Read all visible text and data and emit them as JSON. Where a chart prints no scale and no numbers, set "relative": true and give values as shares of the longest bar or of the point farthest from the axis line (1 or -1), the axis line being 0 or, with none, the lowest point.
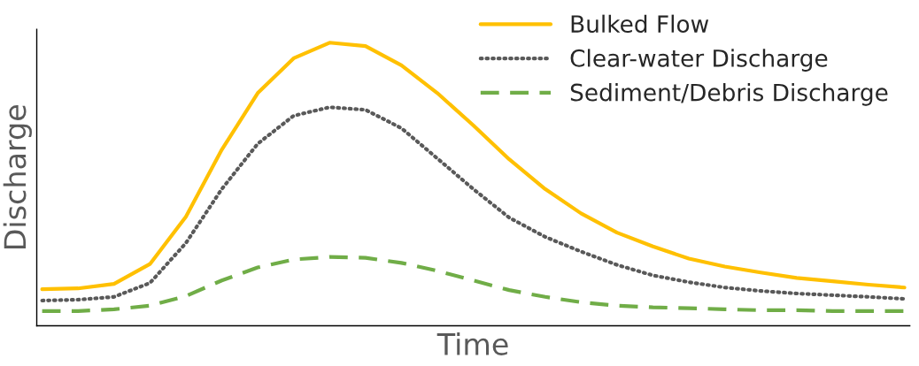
{
  "chart_data": {
    "type": "line",
    "xlabel": "Time",
    "ylabel": "Discharge",
    "relative": true,
    "legend": "top right",
    "grid": false,
    "categories": [
      null,
      null,
      null,
      null,
      null,
      null,
      null,
      null,
      null,
      null,
      null,
      null,
      null,
      null,
      null,
      null,
      null,
      null,
      null,
      null,
      null,
      null,
      null,
      null,
      null
    ],
    "series": [
      {
        "name": "Bulked Flow",
        "color": "#ffc000",
        "line_style": "solid",
        "values": [
          0.129,
          0.132,
          0.148,
          0.218,
          0.385,
          0.622,
          0.822,
          0.945,
          1.0,
          0.988,
          0.92,
          0.822,
          0.708,
          0.588,
          0.483,
          0.397,
          0.329,
          0.28,
          0.237,
          0.209,
          0.188,
          0.169,
          0.157,
          0.145,
          0.135
        ]
      },
      {
        "name": "Clear-water Discharge",
        "color": "#595959",
        "line_style": "dotted",
        "values": [
          0.089,
          0.092,
          0.102,
          0.151,
          0.292,
          0.483,
          0.643,
          0.742,
          0.772,
          0.763,
          0.698,
          0.591,
          0.483,
          0.382,
          0.314,
          0.262,
          0.215,
          0.178,
          0.154,
          0.135,
          0.123,
          0.114,
          0.108,
          0.102,
          0.095
        ]
      },
      {
        "name": "Sediment/Debris Discharge",
        "color": "#70ad47",
        "line_style": "dashed",
        "values": [
          0.052,
          0.052,
          0.058,
          0.071,
          0.105,
          0.16,
          0.206,
          0.234,
          0.243,
          0.24,
          0.222,
          0.194,
          0.16,
          0.126,
          0.102,
          0.083,
          0.071,
          0.065,
          0.062,
          0.058,
          0.055,
          0.055,
          0.052,
          0.052,
          0.052
        ]
      }
    ]
  }
}
